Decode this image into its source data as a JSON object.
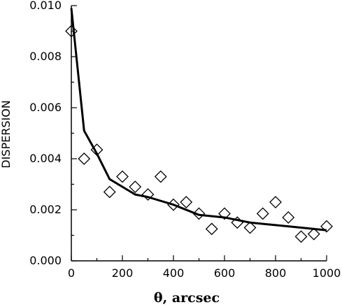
{
  "chart_data": {
    "type": "scatter",
    "xlabel": "θ, arcsec",
    "ylabel": "DISPERSION",
    "xlim": [
      0,
      1000
    ],
    "ylim": [
      0.0,
      0.01
    ],
    "grid": false,
    "x_ticks": [
      0,
      200,
      400,
      600,
      800,
      1000
    ],
    "x_tick_labels": [
      "0",
      "200",
      "400",
      "600",
      "800",
      "1000"
    ],
    "y_ticks": [
      0.0,
      0.002,
      0.004,
      0.006,
      0.008,
      0.01
    ],
    "y_tick_labels": [
      "0.000",
      "0.002",
      "0.004",
      "0.006",
      "0.008",
      "0.010"
    ],
    "series": [
      {
        "kind": "scatter",
        "marker": "diamond-open",
        "x": [
          0,
          50,
          100,
          150,
          200,
          250,
          300,
          350,
          400,
          450,
          500,
          550,
          600,
          650,
          700,
          750,
          800,
          850,
          900,
          950,
          1000
        ],
        "y": [
          0.009,
          0.004,
          0.00435,
          0.0027,
          0.0033,
          0.0029,
          0.0026,
          0.0033,
          0.0022,
          0.0023,
          0.00185,
          0.00125,
          0.00185,
          0.0015,
          0.0013,
          0.00185,
          0.0023,
          0.0017,
          0.00095,
          0.00105,
          0.00135
        ]
      },
      {
        "kind": "line",
        "x": [
          0,
          50,
          100,
          150,
          200,
          250,
          300,
          400,
          500,
          600,
          700,
          800,
          900,
          1000
        ],
        "y": [
          0.0099,
          0.0051,
          0.0042,
          0.0032,
          0.0029,
          0.0026,
          0.0025,
          0.0022,
          0.0018,
          0.0017,
          0.0015,
          0.0014,
          0.0013,
          0.0012
        ]
      }
    ]
  }
}
